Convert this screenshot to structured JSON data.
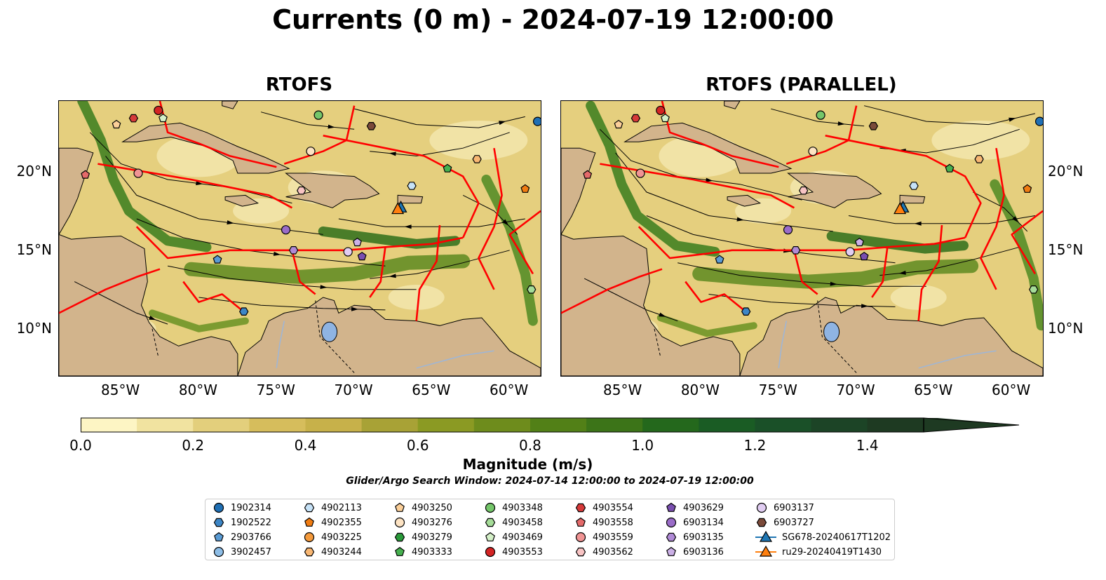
{
  "title": "Currents (0 m) - 2024-07-19 12:00:00",
  "panels": [
    {
      "title": "RTOFS"
    },
    {
      "title": "RTOFS (PARALLEL)"
    }
  ],
  "map_extent": {
    "lon": [
      -89,
      -58
    ],
    "lat": [
      7,
      24.5
    ]
  },
  "axes": {
    "lat_ticks": [
      {
        "value": 20,
        "label": "20°N"
      },
      {
        "value": 15,
        "label": "15°N"
      },
      {
        "value": 10,
        "label": "10°N"
      }
    ],
    "lon_ticks": [
      {
        "value": -85,
        "label": "85°W"
      },
      {
        "value": -80,
        "label": "80°W"
      },
      {
        "value": -75,
        "label": "75°W"
      },
      {
        "value": -70,
        "label": "70°W"
      },
      {
        "value": -65,
        "label": "65°W"
      },
      {
        "value": -60,
        "label": "60°W"
      }
    ]
  },
  "colorbar": {
    "title": "Magnitude (m/s)",
    "range": [
      0,
      1.5
    ],
    "extend": "max",
    "colors": [
      "#fdf5c4",
      "#f1e3a0",
      "#e3cf7c",
      "#d6bd5c",
      "#c7b14a",
      "#a8a236",
      "#8b9a23",
      "#6e8c1c",
      "#528017",
      "#3c7418",
      "#24681c",
      "#1a5c24",
      "#1a5028",
      "#1c4426",
      "#1e3a22"
    ],
    "ticks": [
      "0.0",
      "0.2",
      "0.4",
      "0.6",
      "0.8",
      "1.0",
      "1.2",
      "1.4"
    ]
  },
  "search_window": "Glider/Argo Search Window: 2024-07-14 12:00:00 to 2024-07-19 12:00:00",
  "legend": [
    {
      "label": "1902314",
      "marker": "circle",
      "color": "#1f6fb4"
    },
    {
      "label": "1902522",
      "marker": "hexagon",
      "color": "#3d86c6"
    },
    {
      "label": "2903766",
      "marker": "pentagon",
      "color": "#5a9bd4"
    },
    {
      "label": "3902457",
      "marker": "circle",
      "color": "#8dbde6"
    },
    {
      "label": "4902113",
      "marker": "hexagon",
      "color": "#c6e2f7"
    },
    {
      "label": "4902355",
      "marker": "pentagon",
      "color": "#f07c12"
    },
    {
      "label": "4903225",
      "marker": "circle",
      "color": "#f49a3c"
    },
    {
      "label": "4903244",
      "marker": "hexagon",
      "color": "#f8b773"
    },
    {
      "label": "4903250",
      "marker": "pentagon",
      "color": "#fbcf99"
    },
    {
      "label": "4903276",
      "marker": "circle",
      "color": "#fde3c3"
    },
    {
      "label": "4903279",
      "marker": "hexagon",
      "color": "#2a9a3a"
    },
    {
      "label": "4903333",
      "marker": "pentagon",
      "color": "#46b04f"
    },
    {
      "label": "4903348",
      "marker": "circle",
      "color": "#74c66a"
    },
    {
      "label": "4903458",
      "marker": "hexagon",
      "color": "#a5dc98"
    },
    {
      "label": "4903469",
      "marker": "pentagon",
      "color": "#d4f0c8"
    },
    {
      "label": "4903553",
      "marker": "circle",
      "color": "#d42424"
    },
    {
      "label": "4903554",
      "marker": "hexagon",
      "color": "#d63a3a"
    },
    {
      "label": "4903558",
      "marker": "pentagon",
      "color": "#e46a6a"
    },
    {
      "label": "4903559",
      "marker": "circle",
      "color": "#f09494"
    },
    {
      "label": "4903562",
      "marker": "hexagon",
      "color": "#f8c4c4"
    },
    {
      "label": "4903629",
      "marker": "pentagon",
      "color": "#7a4fb0"
    },
    {
      "label": "6903134",
      "marker": "circle",
      "color": "#9a6cc8"
    },
    {
      "label": "6903135",
      "marker": "hexagon",
      "color": "#b08ad6"
    },
    {
      "label": "6903136",
      "marker": "pentagon",
      "color": "#cbb0e6"
    },
    {
      "label": "6903137",
      "marker": "circle",
      "color": "#e1cdf2"
    },
    {
      "label": "6903727",
      "marker": "hexagon",
      "color": "#7b4a3a"
    },
    {
      "label": "SG678-20240617T1202",
      "marker": "triangle-line",
      "color": "#1f77b4"
    },
    {
      "label": "ru29-20240419T1430",
      "marker": "triangle-line",
      "color": "#ff7f0e"
    }
  ],
  "platforms": [
    {
      "label": "1902314",
      "lon": -58.2,
      "lat": 23.2
    },
    {
      "label": "1902522",
      "lon": -77.1,
      "lat": 11.1
    },
    {
      "label": "2903766",
      "lon": -78.8,
      "lat": 14.4
    },
    {
      "label": "4902113",
      "lon": -66.3,
      "lat": 19.1
    },
    {
      "label": "4902355",
      "lon": -59.0,
      "lat": 18.9
    },
    {
      "label": "4903244",
      "lon": -62.1,
      "lat": 20.8
    },
    {
      "label": "4903250",
      "lon": -85.3,
      "lat": 23.0
    },
    {
      "label": "4903276",
      "lon": -72.8,
      "lat": 21.3
    },
    {
      "label": "4903333",
      "lon": -64.0,
      "lat": 20.2
    },
    {
      "label": "4903348",
      "lon": -72.3,
      "lat": 23.6
    },
    {
      "label": "4903458",
      "lon": -58.6,
      "lat": 12.5
    },
    {
      "label": "4903469",
      "lon": -82.3,
      "lat": 23.4
    },
    {
      "label": "4903553",
      "lon": -82.6,
      "lat": 23.9
    },
    {
      "label": "4903554",
      "lon": -84.2,
      "lat": 23.4
    },
    {
      "label": "4903558",
      "lon": -87.3,
      "lat": 19.8
    },
    {
      "label": "4903559",
      "lon": -83.9,
      "lat": 19.9
    },
    {
      "label": "4903562",
      "lon": -73.4,
      "lat": 18.8
    },
    {
      "label": "4903629",
      "lon": -69.5,
      "lat": 14.6
    },
    {
      "label": "6903134",
      "lon": -74.4,
      "lat": 16.3
    },
    {
      "label": "6903135",
      "lon": -73.9,
      "lat": 15.0
    },
    {
      "label": "6903136",
      "lon": -69.8,
      "lat": 15.5
    },
    {
      "label": "6903137",
      "lon": -70.4,
      "lat": 14.9
    },
    {
      "label": "6903727",
      "lon": -68.9,
      "lat": 22.9
    }
  ],
  "gliders": [
    {
      "label": "SG678-20240617T1202",
      "lon": -67.0,
      "lat": 17.7
    },
    {
      "label": "ru29-20240419T1430",
      "lon": -67.2,
      "lat": 17.6
    }
  ]
}
